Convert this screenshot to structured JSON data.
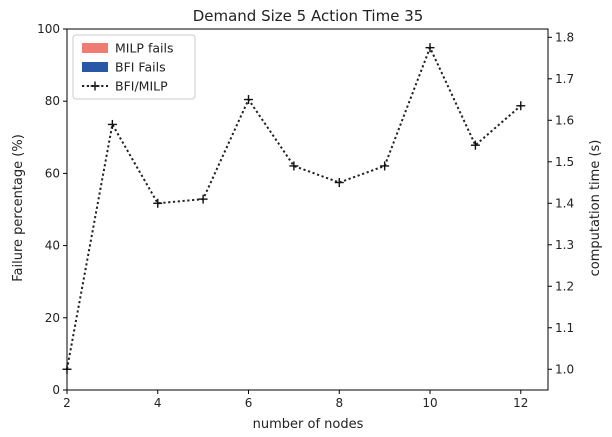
{
  "chart_data": {
    "type": "line",
    "title": "Demand Size 5 Action Time 35",
    "xlabel": "number of nodes",
    "ylabel": "Failure percentage (%)",
    "ylabel_right": "computation time (s)",
    "x": [
      2,
      3,
      4,
      5,
      6,
      7,
      8,
      9,
      10,
      11,
      12
    ],
    "xlim": [
      2,
      12.6
    ],
    "xticks": [
      "2",
      "4",
      "6",
      "8",
      "10",
      "12"
    ],
    "ylim": [
      0,
      100
    ],
    "yticks": [
      "0",
      "20",
      "40",
      "60",
      "80",
      "100"
    ],
    "ylim_right": [
      0.95,
      1.82
    ],
    "yticks_right": [
      "1.0",
      "1.1",
      "1.2",
      "1.3",
      "1.4",
      "1.5",
      "1.6",
      "1.7",
      "1.8"
    ],
    "grid": false,
    "legend_position": "top-left",
    "legend": [
      {
        "label": "MILP fails",
        "kind": "patch",
        "color": "#f07b72"
      },
      {
        "label": "BFI Fails",
        "kind": "patch",
        "color": "#2a56a6"
      },
      {
        "label": "BFI/MILP",
        "kind": "line",
        "color": "#222222"
      }
    ],
    "series": [
      {
        "name": "BFI/MILP",
        "axis": "right",
        "style": "dotted-plus",
        "values": [
          1.0,
          1.59,
          1.4,
          1.41,
          1.65,
          1.49,
          1.45,
          1.49,
          1.775,
          1.54,
          1.635
        ]
      }
    ]
  }
}
